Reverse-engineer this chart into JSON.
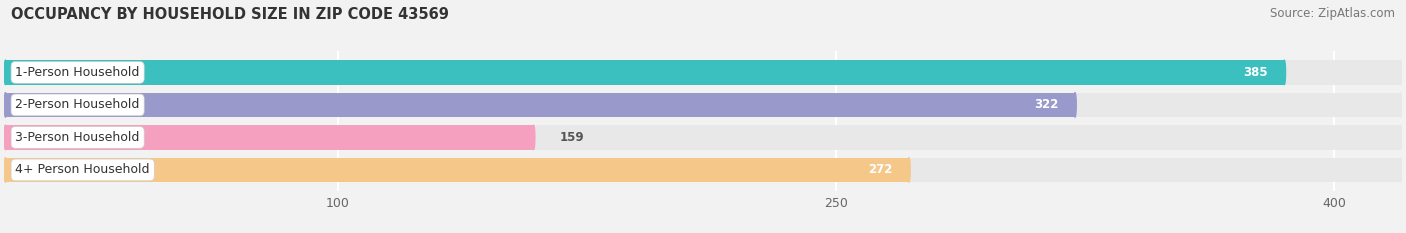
{
  "title": "OCCUPANCY BY HOUSEHOLD SIZE IN ZIP CODE 43569",
  "source": "Source: ZipAtlas.com",
  "categories": [
    "1-Person Household",
    "2-Person Household",
    "3-Person Household",
    "4+ Person Household"
  ],
  "values": [
    385,
    322,
    159,
    272
  ],
  "bar_colors": [
    "#3bbfbf",
    "#9999cc",
    "#f4a0be",
    "#f5c88a"
  ],
  "xlim": [
    0,
    420
  ],
  "xticks": [
    100,
    250,
    400
  ],
  "bar_height": 0.75,
  "figsize": [
    14.06,
    2.33
  ],
  "dpi": 100,
  "title_fontsize": 10.5,
  "source_fontsize": 8.5,
  "label_fontsize": 9,
  "value_fontsize": 8.5,
  "tick_fontsize": 9,
  "background_color": "#f2f2f2",
  "bar_bg_color": "#e8e8e8"
}
